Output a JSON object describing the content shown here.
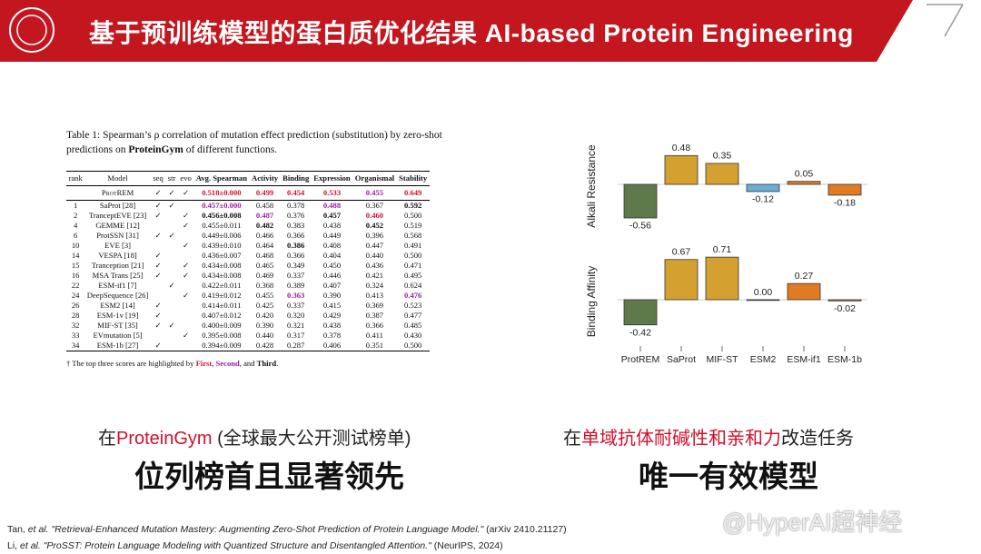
{
  "header": {
    "title": "基于预训练模型的蛋白质优化结果 AI-based Protein Engineering"
  },
  "table": {
    "caption": [
      "Table 1: Spearman’s ρ correlation of mutation effect prediction (substitution) by zero-shot predictions on ",
      "ProteinGym",
      " of different functions."
    ],
    "columns": [
      "rank",
      "Model",
      "seq",
      "str",
      "evo",
      "Avg. Spearman",
      "Activity",
      "Binding",
      "Expression",
      "Organismal",
      "Stability"
    ],
    "rows": [
      [
        null,
        "ProtREM",
        "✓",
        "✓",
        "✓",
        "0.518±0.000",
        "0.499",
        "0.454",
        "0.533",
        "0.455",
        "0.649"
      ],
      [
        "1",
        "SaProt [28]",
        "✓",
        "✓",
        null,
        "0.457±0.000",
        "0.458",
        "0.378",
        "0.488",
        "0.367",
        "0.592"
      ],
      [
        "2",
        "TranceptEVE [23]",
        "✓",
        null,
        "✓",
        "0.456±0.008",
        "0.487",
        "0.376",
        "0.457",
        "0.460",
        "0.500"
      ],
      [
        "4",
        "GEMME [12]",
        null,
        null,
        "✓",
        "0.455±0.011",
        "0.482",
        "0.383",
        "0.438",
        "0.452",
        "0.519"
      ],
      [
        "6",
        "ProtSSN [31]",
        "✓",
        "✓",
        null,
        "0.449±0.006",
        "0.466",
        "0.366",
        "0.449",
        "0.396",
        "0.568"
      ],
      [
        "10",
        "EVE [3]",
        null,
        null,
        "✓",
        "0.439±0.010",
        "0.464",
        "0.386",
        "0.408",
        "0.447",
        "0.491"
      ],
      [
        "14",
        "VESPA [18]",
        "✓",
        null,
        null,
        "0.436±0.007",
        "0.468",
        "0.366",
        "0.404",
        "0.440",
        "0.500"
      ],
      [
        "15",
        "Tranception [21]",
        "✓",
        null,
        "✓",
        "0.434±0.008",
        "0.465",
        "0.349",
        "0.450",
        "0.436",
        "0.471"
      ],
      [
        "16",
        "MSA Trans [25]",
        "✓",
        null,
        "✓",
        "0.434±0.008",
        "0.469",
        "0.337",
        "0.446",
        "0.421",
        "0.495"
      ],
      [
        "22",
        "ESM-if1 [7]",
        null,
        "✓",
        null,
        "0.422±0.011",
        "0.368",
        "0.389",
        "0.407",
        "0.324",
        "0.624"
      ],
      [
        "24",
        "DeepSequence [26]",
        null,
        null,
        "✓",
        "0.419±0.012",
        "0.455",
        "0.363",
        "0.390",
        "0.413",
        "0.476"
      ],
      [
        "26",
        "ESM2 [14]",
        "✓",
        null,
        null,
        "0.414±0.011",
        "0.425",
        "0.337",
        "0.415",
        "0.369",
        "0.523"
      ],
      [
        "28",
        "ESM-1v [19]",
        "✓",
        null,
        null,
        "0.407±0.012",
        "0.420",
        "0.320",
        "0.429",
        "0.387",
        "0.477"
      ],
      [
        "32",
        "MIF-ST [35]",
        "✓",
        "✓",
        null,
        "0.400±0.009",
        "0.390",
        "0.321",
        "0.438",
        "0.366",
        "0.485"
      ],
      [
        "33",
        "EVmutation [5]",
        null,
        null,
        "✓",
        "0.395±0.008",
        "0.440",
        "0.317",
        "0.378",
        "0.411",
        "0.430"
      ],
      [
        "34",
        "ESM-1b [27]",
        "✓",
        null,
        null,
        "0.394±0.009",
        "0.428",
        "0.287",
        "0.406",
        "0.351",
        "0.500"
      ]
    ],
    "footnote": [
      "† The top three scores are highlighted by ",
      "First",
      ", ",
      "Second",
      ", and ",
      "Third",
      "."
    ]
  },
  "chart_data": [
    {
      "type": "bar",
      "ylabel": "Alkali Resistance",
      "values": [
        -0.56,
        0.48,
        0.35,
        -0.12,
        0.05,
        -0.18
      ],
      "value_labels": [
        "-0.56",
        "0.48",
        "0.35",
        "-0.12",
        "0.05",
        "-0.18"
      ],
      "colors": [
        "#5f7a4a",
        "#d4a030",
        "#d4a030",
        "#6aaed6",
        "#e07b22",
        "#e07b22"
      ]
    },
    {
      "type": "bar",
      "ylabel": "Binding Affinity",
      "categories": [
        "ProtREM",
        "SaProt",
        "MIF-ST",
        "ESM2",
        "ESM-if1",
        "ESM-1b"
      ],
      "values": [
        -0.42,
        0.67,
        0.71,
        0.0,
        0.27,
        -0.02
      ],
      "value_labels": [
        "-0.42",
        "0.67",
        "0.71",
        "0.00",
        "0.27",
        "-0.02"
      ],
      "colors": [
        "#5f7a4a",
        "#d4a030",
        "#d4a030",
        "#6aaed6",
        "#e07b22",
        "#e07b22"
      ]
    }
  ],
  "captions": [
    {
      "lead": [
        "在",
        "ProteinGym",
        " (全球最大公开测试榜单)"
      ],
      "headline": "位列榜首且显著领先"
    },
    {
      "lead": [
        "在",
        "单域抗体耐碱性和亲和力",
        "改造任务"
      ],
      "headline": "唯一有效模型"
    }
  ],
  "references": [
    [
      "Tan, ",
      "et al.",
      " \"Retrieval-Enhanced Mutation Mastery: Augmenting Zero-Shot Prediction of Protein Language Model.\"",
      " (arXiv 2410.21127)"
    ],
    [
      "Li, ",
      "et al.",
      " \"ProSST: Protein Language Modeling with Quantized Structure and Disentangled Attention.\"",
      " (NeurIPS, 2024)"
    ]
  ],
  "watermark": "@HyperAI超神经"
}
